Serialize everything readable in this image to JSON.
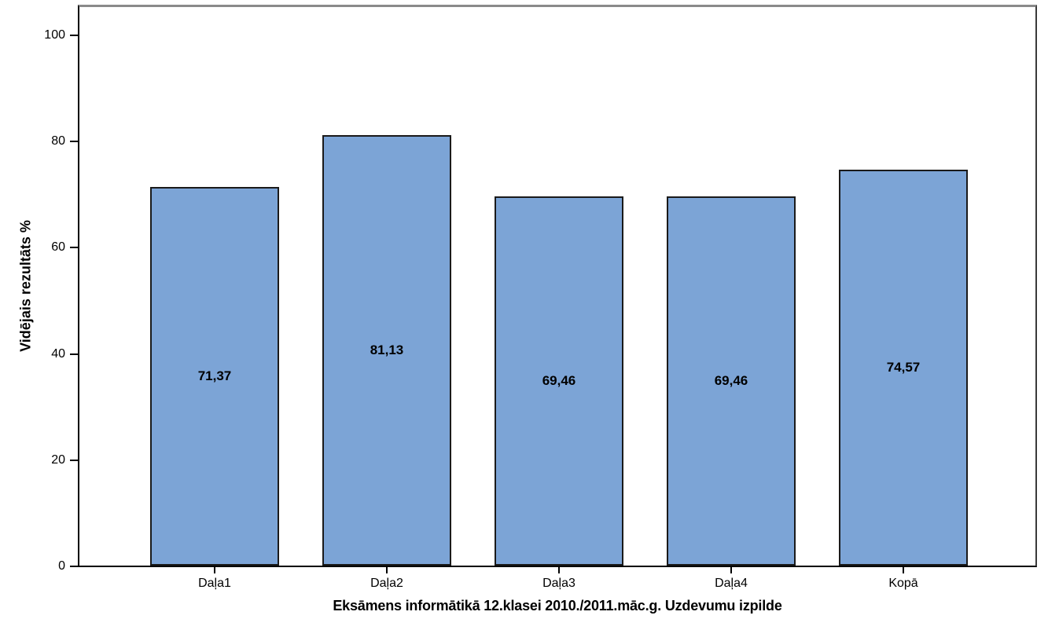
{
  "chart_data": {
    "type": "bar",
    "title": "",
    "categories": [
      "Daļa1",
      "Daļa2",
      "Daļa3",
      "Daļa4",
      "Kopā"
    ],
    "values": [
      71.37,
      81.13,
      69.46,
      69.46,
      74.57
    ],
    "value_labels": [
      "71,37",
      "81,13",
      "69,46",
      "69,46",
      "74,57"
    ],
    "xlabel": "Eksāmens informātikā 12.klasei 2010./2011.māc.g. Uzdevumu izpilde",
    "ylabel": "Vidējais rezultāts %",
    "ylim": [
      0,
      105.8
    ],
    "yticks": [
      0,
      20,
      40,
      60,
      80,
      100
    ],
    "grid": false,
    "legend": null,
    "value_label_position": "bar-middle",
    "decimal_separator": ",",
    "colors": {
      "bar_fill": "#7CA4D6",
      "bar_border": "#1a1a1a",
      "axis_line": "#000000",
      "frame_top": "#8a8a8a",
      "frame_right": "#3a3a3a",
      "text": "#000000",
      "background": "#ffffff"
    }
  }
}
